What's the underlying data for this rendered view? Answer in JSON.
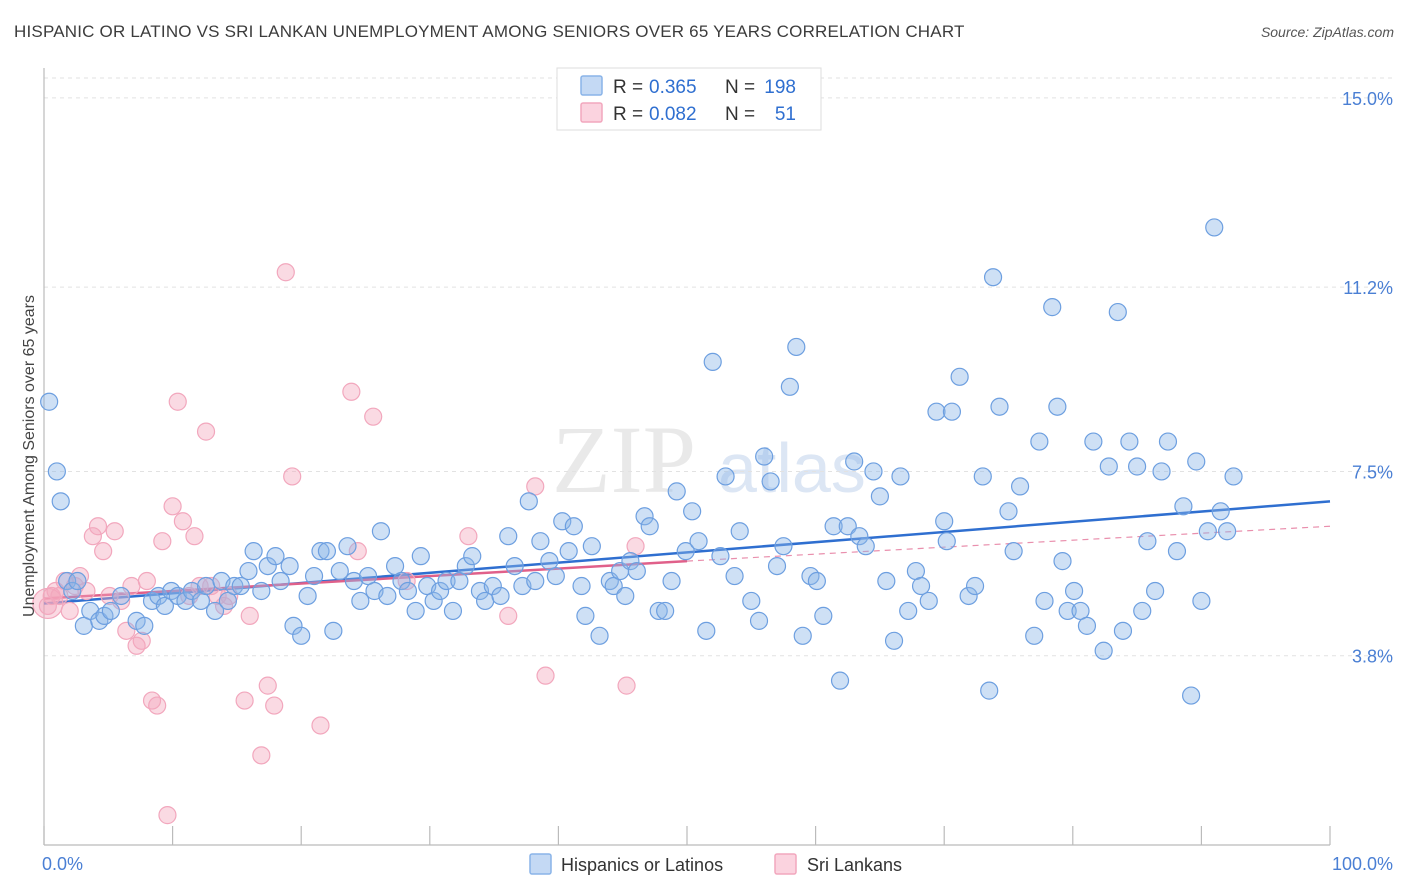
{
  "title": "HISPANIC OR LATINO VS SRI LANKAN UNEMPLOYMENT AMONG SENIORS OVER 65 YEARS CORRELATION CHART",
  "source": "Source: ZipAtlas.com",
  "watermark": {
    "zip": "ZIP",
    "atlas": "atlas"
  },
  "stats": [
    {
      "r_label": "R =",
      "r_value": "0.365",
      "n_label": "N =",
      "n_value": "198",
      "color": "#8ab4e8"
    },
    {
      "r_label": "R =",
      "r_value": "0.082",
      "n_label": "N =",
      "n_value": "51",
      "color": "#f2a7bd"
    }
  ],
  "chart_data": {
    "type": "scatter",
    "title": "HISPANIC OR LATINO VS SRI LANKAN UNEMPLOYMENT AMONG SENIORS OVER 65 YEARS CORRELATION CHART",
    "xlabel": "",
    "ylabel": "Unemployment Among Seniors over 65 years",
    "xlim": [
      0,
      100
    ],
    "ylim": [
      0,
      15.4
    ],
    "x_tick_labels": [
      "0.0%",
      "100.0%"
    ],
    "y_ticks": [
      3.8,
      7.5,
      11.2,
      15.0
    ],
    "y_tick_labels": [
      "3.8%",
      "7.5%",
      "11.2%",
      "15.0%"
    ],
    "grid": true,
    "legend_position": "bottom",
    "series": [
      {
        "name": "Hispanics or Latinos",
        "color": "#8ab4e8",
        "line_color": "#2f6fd0",
        "trend": {
          "x": [
            0,
            100
          ],
          "y": [
            4.85,
            6.9
          ]
        },
        "points": [
          [
            0.4,
            8.9
          ],
          [
            1.0,
            7.5
          ],
          [
            1.3,
            6.9
          ],
          [
            1.8,
            5.3
          ],
          [
            2.2,
            5.1
          ],
          [
            2.6,
            5.3
          ],
          [
            3.1,
            4.4
          ],
          [
            3.6,
            4.7
          ],
          [
            4.3,
            4.5
          ],
          [
            4.7,
            4.6
          ],
          [
            5.2,
            4.7
          ],
          [
            6.0,
            5.0
          ],
          [
            7.2,
            4.5
          ],
          [
            7.8,
            4.4
          ],
          [
            8.4,
            4.9
          ],
          [
            8.9,
            5.0
          ],
          [
            9.4,
            4.8
          ],
          [
            9.9,
            5.1
          ],
          [
            10.4,
            5.0
          ],
          [
            11.0,
            4.9
          ],
          [
            11.5,
            5.1
          ],
          [
            12.2,
            4.9
          ],
          [
            12.6,
            5.2
          ],
          [
            13.3,
            4.7
          ],
          [
            13.8,
            5.3
          ],
          [
            14.3,
            4.9
          ],
          [
            14.8,
            5.2
          ],
          [
            15.3,
            5.2
          ],
          [
            15.9,
            5.5
          ],
          [
            16.3,
            5.9
          ],
          [
            16.9,
            5.1
          ],
          [
            17.4,
            5.6
          ],
          [
            18.0,
            5.8
          ],
          [
            18.4,
            5.3
          ],
          [
            19.1,
            5.6
          ],
          [
            19.4,
            4.4
          ],
          [
            20.0,
            4.2
          ],
          [
            20.5,
            5.0
          ],
          [
            21.0,
            5.4
          ],
          [
            21.5,
            5.9
          ],
          [
            22.0,
            5.9
          ],
          [
            22.5,
            4.3
          ],
          [
            23.0,
            5.5
          ],
          [
            23.6,
            6.0
          ],
          [
            24.1,
            5.3
          ],
          [
            24.6,
            4.9
          ],
          [
            25.2,
            5.4
          ],
          [
            25.7,
            5.1
          ],
          [
            26.2,
            6.3
          ],
          [
            26.7,
            5.0
          ],
          [
            27.3,
            5.6
          ],
          [
            27.8,
            5.3
          ],
          [
            28.3,
            5.1
          ],
          [
            28.9,
            4.7
          ],
          [
            29.3,
            5.8
          ],
          [
            29.8,
            5.2
          ],
          [
            30.3,
            4.9
          ],
          [
            30.8,
            5.1
          ],
          [
            31.3,
            5.3
          ],
          [
            31.8,
            4.7
          ],
          [
            32.3,
            5.3
          ],
          [
            32.8,
            5.6
          ],
          [
            33.3,
            5.8
          ],
          [
            33.9,
            5.1
          ],
          [
            34.3,
            4.9
          ],
          [
            34.9,
            5.2
          ],
          [
            35.5,
            5.0
          ],
          [
            36.1,
            6.2
          ],
          [
            36.6,
            5.6
          ],
          [
            37.2,
            5.2
          ],
          [
            37.7,
            6.9
          ],
          [
            38.2,
            5.3
          ],
          [
            38.6,
            6.1
          ],
          [
            39.3,
            5.7
          ],
          [
            39.8,
            5.4
          ],
          [
            40.3,
            6.5
          ],
          [
            40.8,
            5.9
          ],
          [
            41.2,
            6.4
          ],
          [
            41.8,
            5.2
          ],
          [
            42.1,
            4.6
          ],
          [
            42.6,
            6.0
          ],
          [
            43.2,
            4.2
          ],
          [
            44.0,
            5.3
          ],
          [
            44.3,
            5.2
          ],
          [
            44.8,
            5.5
          ],
          [
            45.2,
            5.0
          ],
          [
            45.6,
            5.7
          ],
          [
            46.1,
            5.5
          ],
          [
            46.7,
            6.6
          ],
          [
            47.1,
            6.4
          ],
          [
            47.8,
            4.7
          ],
          [
            48.3,
            4.7
          ],
          [
            48.8,
            5.3
          ],
          [
            49.2,
            7.1
          ],
          [
            49.9,
            5.9
          ],
          [
            50.4,
            6.7
          ],
          [
            50.9,
            6.1
          ],
          [
            51.5,
            4.3
          ],
          [
            52.0,
            9.7
          ],
          [
            52.6,
            5.8
          ],
          [
            53.0,
            7.4
          ],
          [
            53.7,
            5.4
          ],
          [
            54.1,
            6.3
          ],
          [
            55.0,
            4.9
          ],
          [
            55.6,
            4.5
          ],
          [
            56.0,
            7.8
          ],
          [
            56.5,
            7.3
          ],
          [
            57.0,
            5.6
          ],
          [
            57.5,
            6.0
          ],
          [
            58.0,
            9.2
          ],
          [
            58.5,
            10.0
          ],
          [
            59.0,
            4.2
          ],
          [
            59.6,
            5.4
          ],
          [
            60.1,
            5.3
          ],
          [
            60.6,
            4.6
          ],
          [
            61.4,
            6.4
          ],
          [
            61.9,
            3.3
          ],
          [
            62.5,
            6.4
          ],
          [
            63.0,
            7.7
          ],
          [
            63.4,
            6.2
          ],
          [
            63.9,
            6.0
          ],
          [
            64.5,
            7.5
          ],
          [
            65.0,
            7.0
          ],
          [
            65.5,
            5.3
          ],
          [
            66.1,
            4.1
          ],
          [
            66.6,
            7.4
          ],
          [
            67.2,
            4.7
          ],
          [
            67.8,
            5.5
          ],
          [
            68.2,
            5.2
          ],
          [
            68.8,
            4.9
          ],
          [
            69.4,
            8.7
          ],
          [
            70.0,
            6.5
          ],
          [
            70.2,
            6.1
          ],
          [
            70.6,
            8.7
          ],
          [
            71.2,
            9.4
          ],
          [
            71.9,
            5.0
          ],
          [
            72.4,
            5.2
          ],
          [
            73.0,
            7.4
          ],
          [
            73.5,
            3.1
          ],
          [
            73.8,
            11.4
          ],
          [
            74.3,
            8.8
          ],
          [
            75.0,
            6.7
          ],
          [
            75.4,
            5.9
          ],
          [
            75.9,
            7.2
          ],
          [
            77.0,
            4.2
          ],
          [
            77.4,
            8.1
          ],
          [
            77.8,
            4.9
          ],
          [
            78.4,
            10.8
          ],
          [
            78.8,
            8.8
          ],
          [
            79.2,
            5.7
          ],
          [
            79.6,
            4.7
          ],
          [
            80.1,
            5.1
          ],
          [
            80.6,
            4.7
          ],
          [
            81.1,
            4.4
          ],
          [
            81.6,
            8.1
          ],
          [
            82.4,
            3.9
          ],
          [
            82.8,
            7.6
          ],
          [
            83.5,
            10.7
          ],
          [
            83.9,
            4.3
          ],
          [
            84.4,
            8.1
          ],
          [
            85.0,
            7.6
          ],
          [
            85.4,
            4.7
          ],
          [
            85.8,
            6.1
          ],
          [
            86.4,
            5.1
          ],
          [
            86.9,
            7.5
          ],
          [
            87.4,
            8.1
          ],
          [
            88.1,
            5.9
          ],
          [
            88.6,
            6.8
          ],
          [
            89.2,
            3.0
          ],
          [
            89.6,
            7.7
          ],
          [
            90.0,
            4.9
          ],
          [
            90.5,
            6.3
          ],
          [
            91.0,
            12.4
          ],
          [
            91.5,
            6.7
          ],
          [
            92.0,
            6.3
          ],
          [
            92.5,
            7.4
          ]
        ]
      },
      {
        "name": "Sri Lankans",
        "color": "#f2a7bd",
        "line_color": "#e0608a",
        "trend": {
          "x": [
            0,
            50
          ],
          "y": [
            4.95,
            5.7
          ]
        },
        "trend_dashed": {
          "x": [
            50,
            100
          ],
          "y": [
            5.7,
            6.4
          ]
        },
        "points": [
          [
            0.3,
            4.8
          ],
          [
            0.6,
            5.0
          ],
          [
            0.9,
            5.1
          ],
          [
            1.2,
            5.0
          ],
          [
            1.6,
            5.3
          ],
          [
            2.0,
            4.7
          ],
          [
            2.4,
            5.2
          ],
          [
            2.8,
            5.4
          ],
          [
            3.3,
            5.1
          ],
          [
            3.8,
            6.2
          ],
          [
            4.2,
            6.4
          ],
          [
            4.6,
            5.9
          ],
          [
            5.1,
            5.0
          ],
          [
            5.5,
            6.3
          ],
          [
            6.0,
            4.9
          ],
          [
            6.4,
            4.3
          ],
          [
            6.8,
            5.2
          ],
          [
            7.2,
            4.0
          ],
          [
            7.6,
            4.1
          ],
          [
            8.0,
            5.3
          ],
          [
            8.4,
            2.9
          ],
          [
            8.8,
            2.8
          ],
          [
            9.2,
            6.1
          ],
          [
            9.6,
            0.6
          ],
          [
            10.0,
            6.8
          ],
          [
            10.4,
            8.9
          ],
          [
            10.8,
            6.5
          ],
          [
            11.3,
            5.0
          ],
          [
            11.7,
            6.2
          ],
          [
            12.1,
            5.2
          ],
          [
            12.6,
            8.3
          ],
          [
            13.0,
            5.2
          ],
          [
            13.5,
            5.0
          ],
          [
            14.0,
            4.8
          ],
          [
            14.4,
            5.0
          ],
          [
            15.6,
            2.9
          ],
          [
            16.0,
            4.6
          ],
          [
            16.9,
            1.8
          ],
          [
            17.4,
            3.2
          ],
          [
            17.9,
            2.8
          ],
          [
            18.8,
            11.5
          ],
          [
            19.3,
            7.4
          ],
          [
            21.5,
            2.4
          ],
          [
            23.9,
            9.1
          ],
          [
            24.4,
            5.9
          ],
          [
            25.6,
            8.6
          ],
          [
            28.2,
            5.3
          ],
          [
            33.0,
            6.2
          ],
          [
            36.1,
            4.6
          ],
          [
            38.2,
            7.2
          ],
          [
            39.0,
            3.4
          ],
          [
            45.3,
            3.2
          ],
          [
            46.0,
            6.0
          ]
        ]
      }
    ]
  },
  "legend": [
    {
      "label": "Hispanics or Latinos",
      "color": "#8ab4e8"
    },
    {
      "label": "Sri Lankans",
      "color": "#f2a7bd"
    }
  ]
}
